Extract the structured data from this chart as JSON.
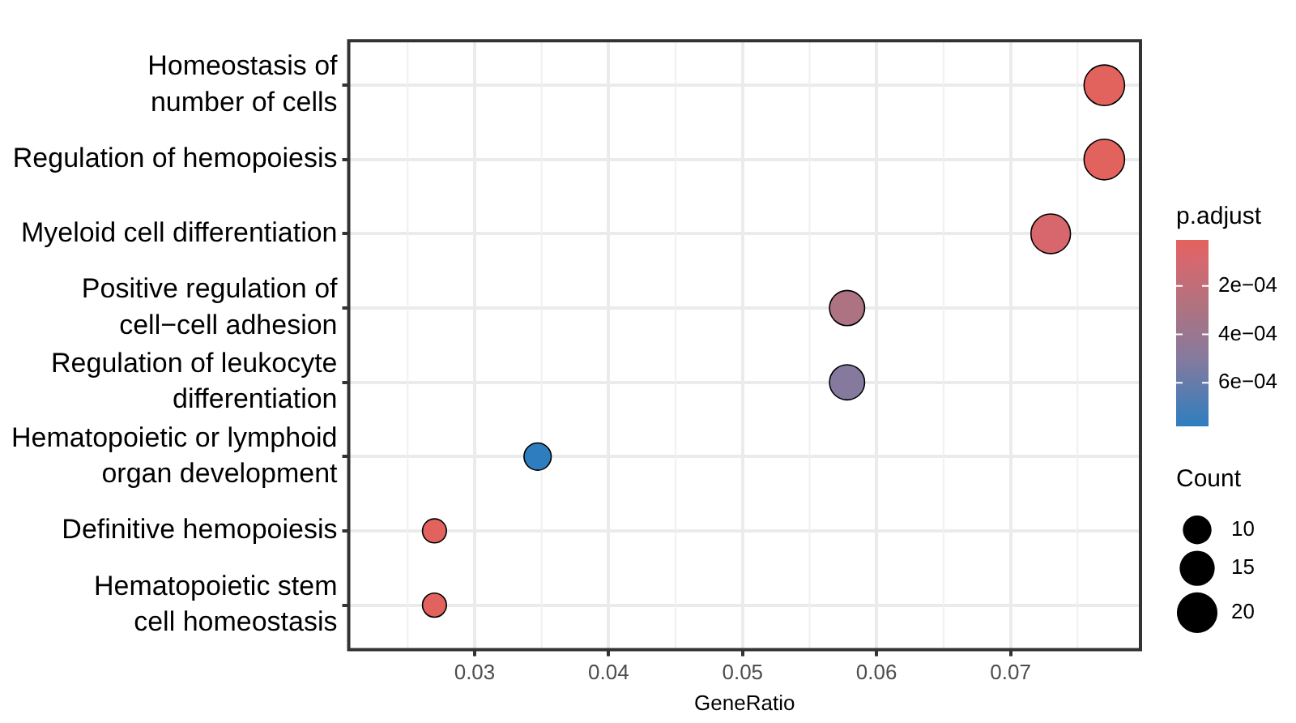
{
  "chart_data": {
    "type": "bubble",
    "orientation": "horizontal",
    "xlabel": "GeneRatio",
    "clabel": "p.adjust",
    "legend_title": "Count",
    "grid": true,
    "categories": [
      "Homeostasis of\nnumber of cells",
      "Regulation of hemopoiesis",
      "Myeloid cell differentiation",
      "Positive regulation of\ncell−cell adhesion",
      "Regulation of leukocyte\ndifferentiation",
      "Hematopoietic or lymphoid\norgan development",
      "Definitive hemopoiesis",
      "Hematopoietic stem\ncell homeostasis"
    ],
    "values": [
      0.077,
      0.077,
      0.073,
      0.0578,
      0.0578,
      0.0347,
      0.027,
      0.027
    ],
    "sizes": [
      20,
      20,
      19,
      15,
      15,
      9,
      7,
      7
    ],
    "size_legend": [
      10,
      15,
      20
    ],
    "cvalues": [
      2e-05,
      2e-05,
      8e-05,
      0.0003,
      0.0005,
      0.00078,
      2e-05,
      2e-05
    ],
    "colors": [
      "#e2625e",
      "#e2625e",
      "#d8676d",
      "#ad7382",
      "#857a9e",
      "#2e7ebf",
      "#e2625e",
      "#e2625e"
    ],
    "clim": [
      0.00078,
      1e-05
    ],
    "cticks": [
      {
        "value": 0.0002,
        "label": "2e−04"
      },
      {
        "value": 0.0004,
        "label": "4e−04"
      },
      {
        "value": 0.0006,
        "label": "6e−04"
      }
    ],
    "xlim": [
      0.0206,
      0.0797
    ],
    "xticks": [
      0.03,
      0.04,
      0.05,
      0.06,
      0.07
    ]
  }
}
